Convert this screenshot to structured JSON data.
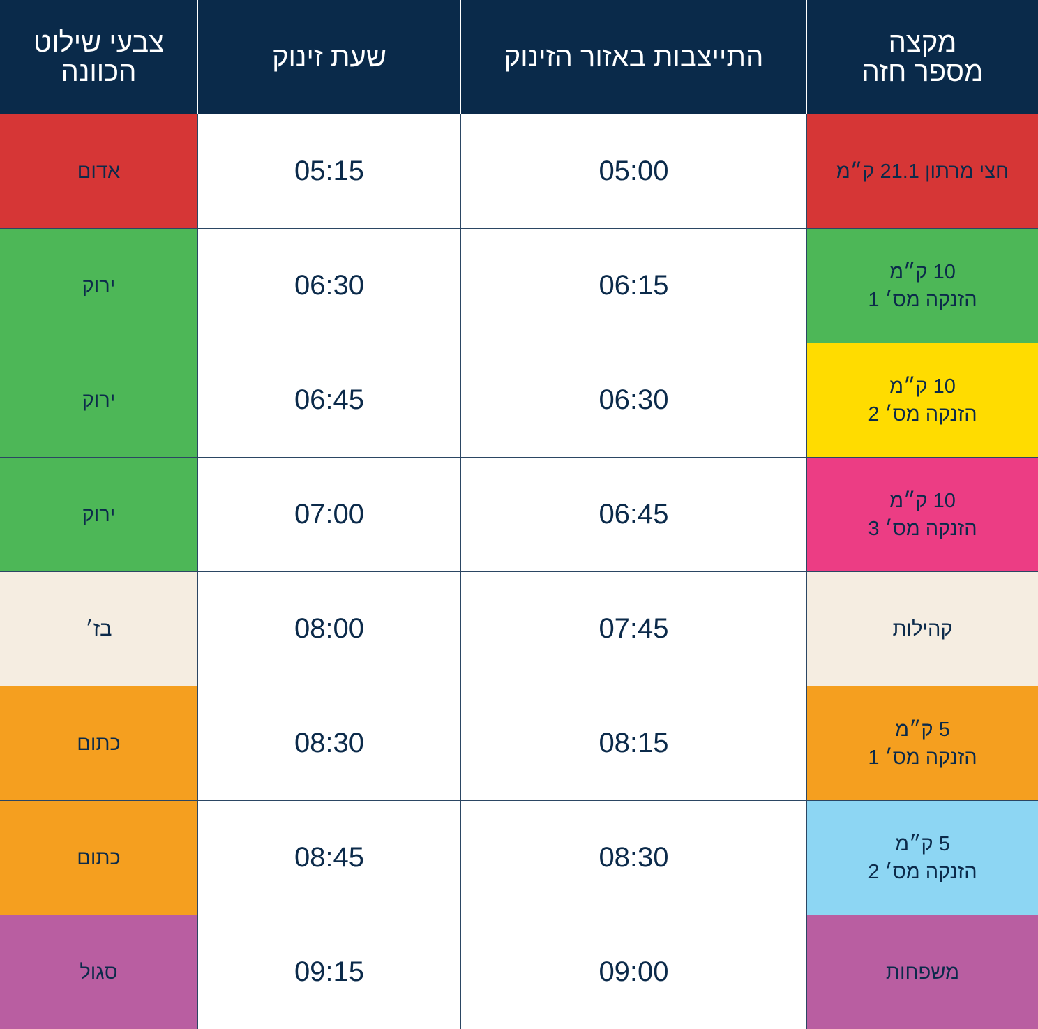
{
  "headers": {
    "category_line1": "מקצה",
    "category_line2": "מספר חזה",
    "arrival": "התייצבות באזור הזינוק",
    "start": "שעת זינוק",
    "color_line1": "צבעי שילוט",
    "color_line2": "הכוונה"
  },
  "rows": [
    {
      "category_line1": "חצי מרתון 21.1 ק״מ",
      "category_line2": "",
      "arrival": "05:00",
      "start": "05:15",
      "sign_color": "אדום",
      "category_bg": "#d63636",
      "sign_bg": "#d63636"
    },
    {
      "category_line1": "10 ק״מ",
      "category_line2": "הזנקה מס׳ 1",
      "arrival": "06:15",
      "start": "06:30",
      "sign_color": "ירוק",
      "category_bg": "#4db757",
      "sign_bg": "#4db757"
    },
    {
      "category_line1": "10 ק״מ",
      "category_line2": "הזנקה מס׳ 2",
      "arrival": "06:30",
      "start": "06:45",
      "sign_color": "ירוק",
      "category_bg": "#ffdc00",
      "sign_bg": "#4db757"
    },
    {
      "category_line1": "10 ק״מ",
      "category_line2": "הזנקה מס׳ 3",
      "arrival": "06:45",
      "start": "07:00",
      "sign_color": "ירוק",
      "category_bg": "#ec3d84",
      "sign_bg": "#4db757"
    },
    {
      "category_line1": "קהילות",
      "category_line2": "",
      "arrival": "07:45",
      "start": "08:00",
      "sign_color": "בז׳",
      "category_bg": "#f5ede1",
      "sign_bg": "#f5ede1"
    },
    {
      "category_line1": "5 ק״מ",
      "category_line2": "הזנקה מס׳ 1",
      "arrival": "08:15",
      "start": "08:30",
      "sign_color": "כתום",
      "category_bg": "#f59f1f",
      "sign_bg": "#f59f1f"
    },
    {
      "category_line1": "5 ק״מ",
      "category_line2": "הזנקה מס׳ 2",
      "arrival": "08:30",
      "start": "08:45",
      "sign_color": "כתום",
      "category_bg": "#8dd6f3",
      "sign_bg": "#f59f1f"
    },
    {
      "category_line1": "משפחות",
      "category_line2": "",
      "arrival": "09:00",
      "start": "09:15",
      "sign_color": "סגול",
      "category_bg": "#b95ea1",
      "sign_bg": "#b95ea1"
    }
  ]
}
